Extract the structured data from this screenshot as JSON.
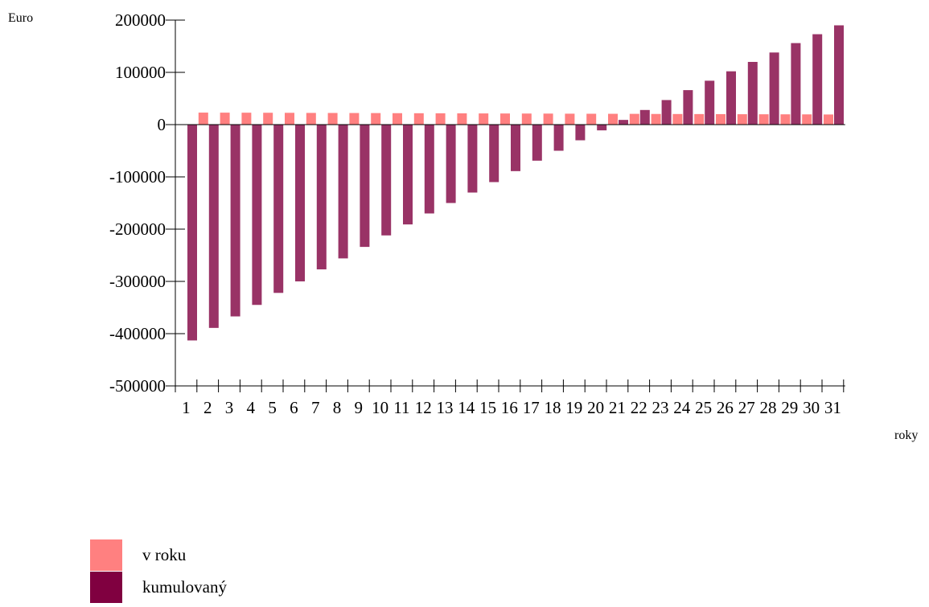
{
  "chart_data": {
    "type": "bar",
    "ylabel": "Euro",
    "xlabel": "roky",
    "ylim": [
      -500000,
      200000
    ],
    "yticks": [
      200000,
      100000,
      0,
      -100000,
      -200000,
      -300000,
      -400000,
      -500000
    ],
    "categories": [
      "1",
      "2",
      "3",
      "4",
      "5",
      "6",
      "7",
      "8",
      "9",
      "10",
      "11",
      "12",
      "13",
      "14",
      "15",
      "16",
      "17",
      "18",
      "19",
      "20",
      "21",
      "22",
      "23",
      "24",
      "25",
      "26",
      "27",
      "28",
      "29",
      "30",
      "31"
    ],
    "series": [
      {
        "name": "v roku",
        "color": "#ff8080",
        "values": [
          null,
          23000,
          22900,
          22800,
          22700,
          22600,
          22400,
          22300,
          22200,
          22100,
          21900,
          21800,
          21700,
          21600,
          21400,
          21300,
          21200,
          21100,
          20900,
          20800,
          20700,
          20600,
          20400,
          20300,
          20200,
          20100,
          19900,
          19800,
          19700,
          19600,
          19400
        ]
      },
      {
        "name": "kumulovaný",
        "color": "#993366",
        "values": [
          -413000,
          -389000,
          -367000,
          -345000,
          -322000,
          -300000,
          -277000,
          -256000,
          -234000,
          -212000,
          -191000,
          -170000,
          -150000,
          -130000,
          -110000,
          -89000,
          -69000,
          -50000,
          -30000,
          -11000,
          9000,
          28000,
          47000,
          66000,
          84000,
          102000,
          120000,
          138000,
          156000,
          173000,
          190000
        ]
      }
    ],
    "legend": [
      {
        "label": "v roku",
        "color": "#ff8080"
      },
      {
        "label": "kumulovaný",
        "color": "#800040"
      }
    ]
  }
}
